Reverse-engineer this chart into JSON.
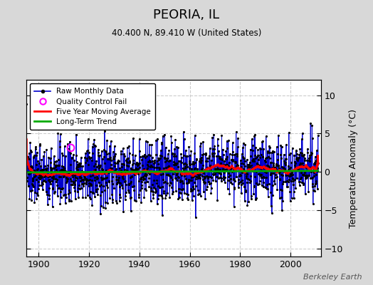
{
  "title": "PEORIA, IL",
  "subtitle": "40.400 N, 89.410 W (United States)",
  "ylabel": "Temperature Anomaly (°C)",
  "watermark": "Berkeley Earth",
  "year_start": 1895,
  "year_end": 2011,
  "xlim": [
    1895,
    2012
  ],
  "ylim": [
    -11,
    12
  ],
  "yticks": [
    -10,
    -5,
    0,
    5,
    10
  ],
  "xticks": [
    1900,
    1920,
    1940,
    1960,
    1980,
    2000
  ],
  "fig_bg_color": "#d8d8d8",
  "plot_bg_color": "#ffffff",
  "grid_color": "#cccccc",
  "stem_color": "#7777ff",
  "line_color": "#0000cc",
  "dot_color": "#000000",
  "ma_color": "#ff0000",
  "trend_color": "#00aa00",
  "qc_fail_year": 1912.5,
  "qc_fail_value": 3.2,
  "seed": 137
}
